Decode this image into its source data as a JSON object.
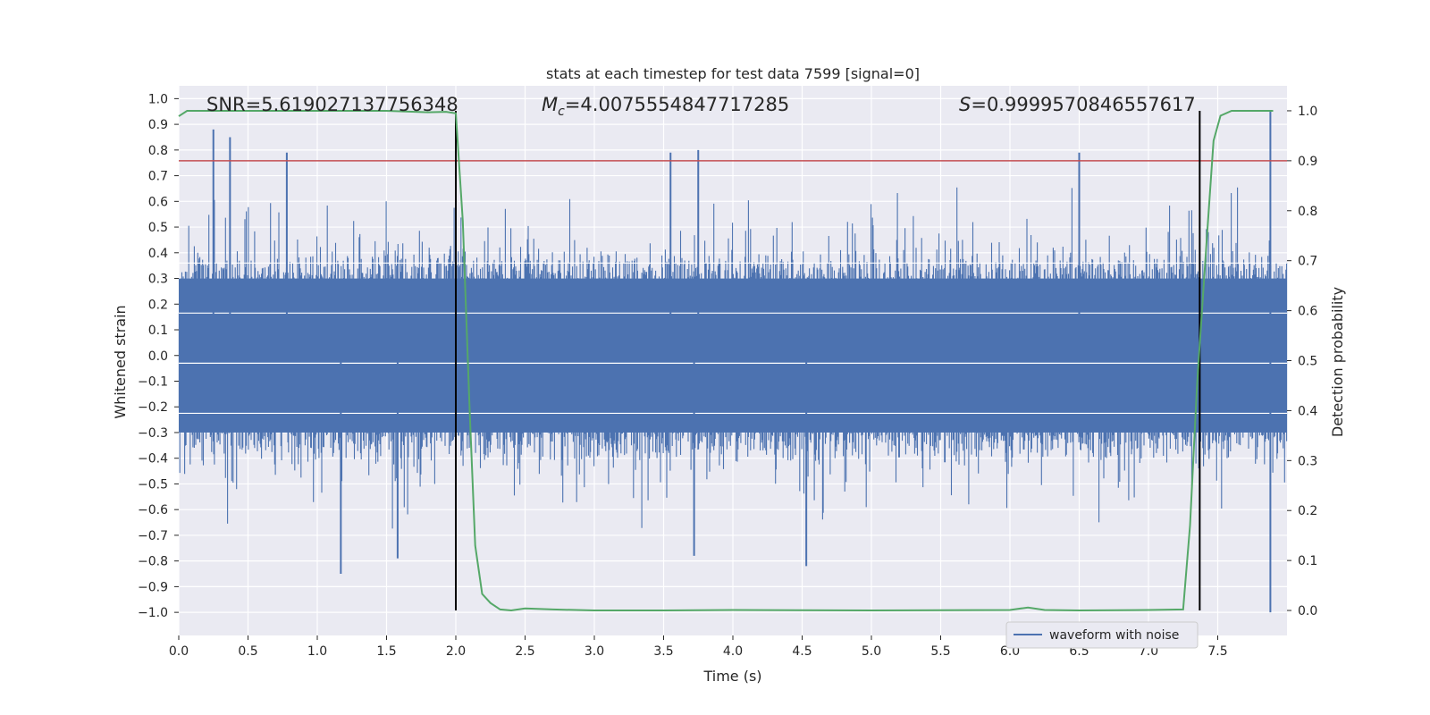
{
  "chart_data": {
    "type": "line",
    "title": "stats at each timestep for test data 7599 [signal=0]",
    "xlabel": "Time (s)",
    "ylabel": "Whitened strain",
    "y2label": "Detection probability",
    "xlim": [
      0.0,
      8.0
    ],
    "ylim": [
      -1.09,
      1.05
    ],
    "y2lim": [
      -0.05,
      1.05
    ],
    "xticks": [
      "0.0",
      "0.5",
      "1.0",
      "1.5",
      "2.0",
      "2.5",
      "3.0",
      "3.5",
      "4.0",
      "4.5",
      "5.0",
      "5.5",
      "6.0",
      "6.5",
      "7.0",
      "7.5"
    ],
    "yticks": [
      "1.0",
      "0.9",
      "0.8",
      "0.7",
      "0.6",
      "0.5",
      "0.4",
      "0.3",
      "0.2",
      "0.1",
      "0.0",
      "-0.1",
      "-0.2",
      "-0.3",
      "-0.4",
      "-0.5",
      "-0.6",
      "-0.7",
      "-0.8",
      "-0.9",
      "-1.0"
    ],
    "y2ticks": [
      "1.0",
      "0.9",
      "0.8",
      "0.7",
      "0.6",
      "0.5",
      "0.4",
      "0.3",
      "0.2",
      "0.1",
      "0.0"
    ],
    "annotations": {
      "snr": "SNR=5.619027137756348",
      "mc_symbol": "M",
      "mc_sub": "c",
      "mc_value": "=4.0075554847717285",
      "s_symbol": "S",
      "s_value": "=0.9999570846557617"
    },
    "legend": {
      "label": "waveform with noise",
      "position": "lower-right"
    },
    "threshold_line": {
      "axis": "y2",
      "value": 0.9,
      "color": "#c44e52"
    },
    "vertical_lines": [
      2.0,
      7.37
    ],
    "colors": {
      "waveform": "#4c72b0",
      "probability": "#55a868",
      "threshold": "#c44e52",
      "vline": "#000000",
      "axes_bg": "#eaeaf2",
      "grid": "#ffffff"
    },
    "series": [
      {
        "name": "waveform with noise",
        "axis": "y",
        "description": "dense whitened strain noise, bulk roughly within ±0.35 with spikes up to about ±0.95",
        "peaks": [
          {
            "x": 0.25,
            "y": 0.88
          },
          {
            "x": 0.37,
            "y": 0.85
          },
          {
            "x": 0.78,
            "y": 0.79
          },
          {
            "x": 3.55,
            "y": 0.79
          },
          {
            "x": 3.75,
            "y": 0.8
          },
          {
            "x": 6.5,
            "y": 0.79
          },
          {
            "x": 7.88,
            "y": 0.95
          },
          {
            "x": 1.17,
            "y": -0.85
          },
          {
            "x": 1.58,
            "y": -0.79
          },
          {
            "x": 3.72,
            "y": -0.78
          },
          {
            "x": 4.53,
            "y": -0.82
          },
          {
            "x": 7.88,
            "y": -1.0
          }
        ]
      },
      {
        "name": "Detection probability",
        "axis": "y2",
        "x": [
          0.0,
          0.06,
          0.2,
          0.5,
          1.0,
          1.5,
          1.8,
          1.93,
          2.0,
          2.05,
          2.1,
          2.14,
          2.19,
          2.25,
          2.32,
          2.4,
          2.5,
          2.7,
          3.0,
          3.5,
          4.0,
          5.0,
          6.0,
          6.13,
          6.25,
          6.5,
          7.0,
          7.25,
          7.3,
          7.35,
          7.42,
          7.47,
          7.52,
          7.6,
          7.7,
          7.8,
          7.9
        ],
        "values": [
          0.989,
          1.0,
          1.0,
          1.0,
          1.0,
          1.0,
          0.997,
          0.998,
          0.995,
          0.78,
          0.4,
          0.13,
          0.033,
          0.015,
          0.002,
          0.0,
          0.004,
          0.002,
          0.0,
          0.0,
          0.001,
          0.0,
          0.001,
          0.006,
          0.001,
          0.0,
          0.001,
          0.002,
          0.17,
          0.45,
          0.74,
          0.94,
          0.99,
          1.0,
          1.0,
          1.0,
          1.0
        ]
      }
    ]
  }
}
